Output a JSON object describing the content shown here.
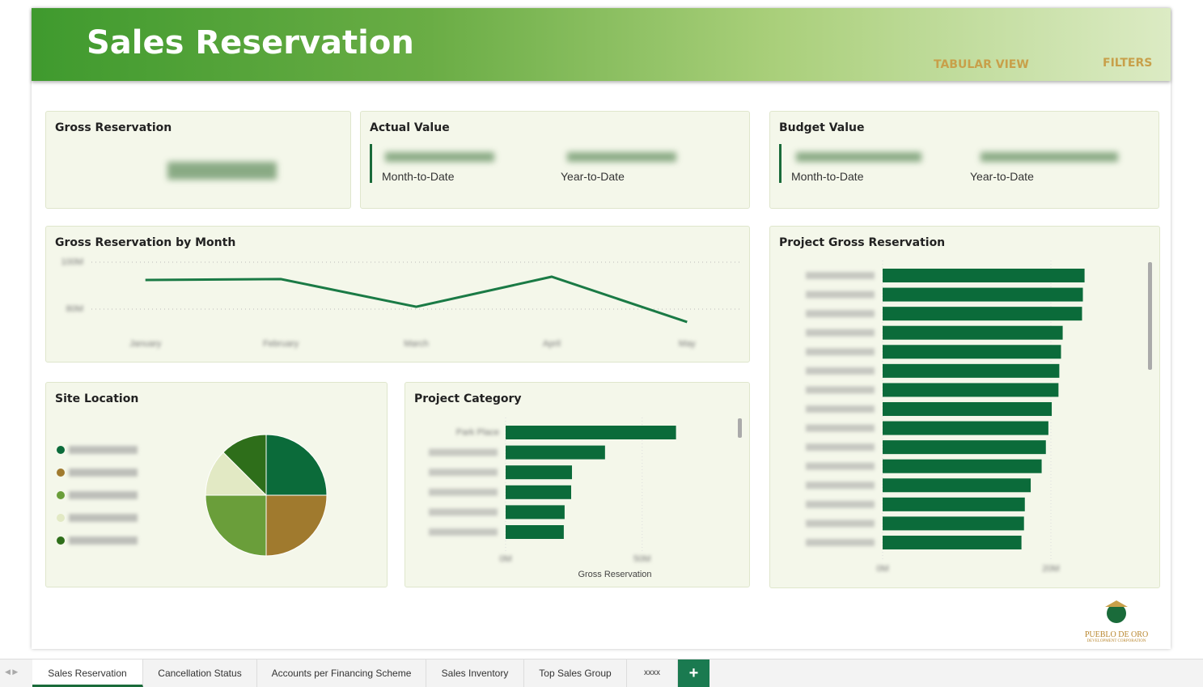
{
  "header": {
    "title": "Sales Reservation",
    "links": [
      "TABULAR VIEW",
      "FILTERS"
    ]
  },
  "cards": [
    {
      "title": "Gross Reservation"
    },
    {
      "title": "Actual Value",
      "labels": [
        "Month-to-Date",
        "Year-to-Date"
      ]
    },
    {
      "title": "Budget Value",
      "labels": [
        "Month-to-Date",
        "Year-to-Date"
      ]
    }
  ],
  "chart_data": [
    {
      "type": "line",
      "title": "Gross Reservation by Month",
      "categories": [
        "January",
        "February",
        "March",
        "April",
        "May"
      ],
      "values": [
        92400000,
        92800000,
        81000000,
        93800000,
        74500000
      ],
      "color": "#1a7a45",
      "ylim": [
        70000000,
        100000000
      ],
      "yticks": [
        {
          "value": 80000000,
          "label": "80M"
        },
        {
          "value": 100000000,
          "label": "100M"
        }
      ],
      "grid": true
    },
    {
      "type": "pie",
      "title": "Site Location",
      "values": [
        25,
        25,
        25,
        12.5,
        12.5
      ],
      "colors": [
        "#0b6b3a",
        "#a07a2e",
        "#6a9e3a",
        "#e2e9c4",
        "#2e6e1a"
      ]
    },
    {
      "type": "barh",
      "title": "Project Category",
      "categories": [
        "Park Place",
        null,
        null,
        null,
        null,
        null
      ],
      "values": [
        62400000,
        36400000,
        24300000,
        24000000,
        21600000,
        21300000
      ],
      "color": "#0b6b3a",
      "xlim": [
        0,
        80000000
      ],
      "xticks": [
        {
          "value": 0,
          "label": "0M"
        },
        {
          "value": 50000000,
          "label": "50M"
        }
      ],
      "xlabel": "Gross Reservation"
    },
    {
      "type": "barh",
      "title": "Project Gross Reservation",
      "categories": [
        null,
        null,
        null,
        null,
        null,
        null,
        null,
        null,
        null,
        null,
        null,
        null,
        null,
        null,
        null
      ],
      "values": [
        24000000,
        23800000,
        23700000,
        21400000,
        21200000,
        21000000,
        20900000,
        20100000,
        19700000,
        19400000,
        18900000,
        17600000,
        16900000,
        16800000,
        16500000
      ],
      "color": "#0b6b3a",
      "xlim": [
        0,
        30000000
      ],
      "xticks": [
        {
          "value": 0,
          "label": "0M"
        },
        {
          "value": 20000000,
          "label": "20M"
        }
      ]
    }
  ],
  "logo": {
    "name": "PUEBLO DE ORO",
    "tagline": "DEVELOPMENT CORPORATION"
  },
  "tabs": [
    "Sales Reservation",
    "Cancellation Status",
    "Accounts per Financing Scheme",
    "Sales Inventory",
    "Top Sales Group",
    "xxxx"
  ]
}
